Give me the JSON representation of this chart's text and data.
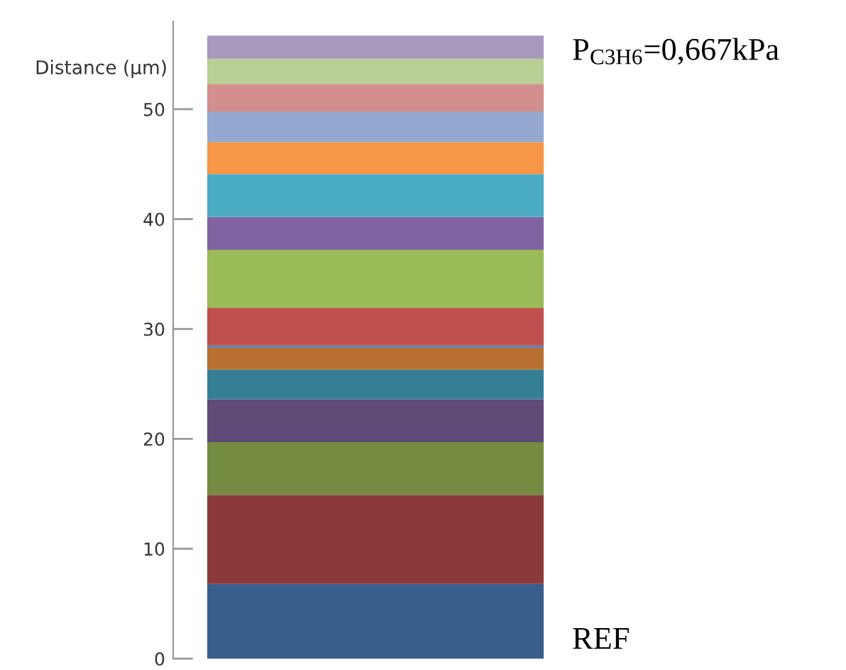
{
  "chart_data": {
    "type": "bar",
    "stacked": true,
    "categories": [
      null
    ],
    "ylabel": "Distance (µm)",
    "ylim": [
      0,
      58
    ],
    "yticks": [
      0,
      10,
      20,
      30,
      40,
      50
    ],
    "grid": false,
    "legend": false,
    "tick_labels": "y",
    "annotations": [
      "P$_{C3H6}$=0,667kPa",
      "REF"
    ],
    "series": [
      {
        "color": "#3a5e8c",
        "values": [
          6.8
        ]
      },
      {
        "color": "#8b3a3a",
        "values": [
          8.1
        ]
      },
      {
        "color": "#748b41",
        "values": [
          4.8
        ]
      },
      {
        "color": "#5f4a78",
        "values": [
          3.9
        ]
      },
      {
        "color": "#357f94",
        "values": [
          2.7
        ]
      },
      {
        "color": "#b86f31",
        "values": [
          2.0
        ]
      },
      {
        "color": "#4f81bd",
        "values": [
          0.2
        ]
      },
      {
        "color": "#c0504d",
        "values": [
          3.4
        ]
      },
      {
        "color": "#9bbb59",
        "values": [
          5.3
        ]
      },
      {
        "color": "#8064a2",
        "values": [
          3.0
        ]
      },
      {
        "color": "#4bacc6",
        "values": [
          3.9
        ]
      },
      {
        "color": "#f79646",
        "values": [
          2.9
        ]
      },
      {
        "color": "#95a9d0",
        "values": [
          2.8
        ]
      },
      {
        "color": "#d38f8d",
        "values": [
          2.5
        ]
      },
      {
        "color": "#b8cf96",
        "values": [
          2.3
        ]
      },
      {
        "color": "#a898bd",
        "values": [
          2.1
        ]
      }
    ]
  }
}
